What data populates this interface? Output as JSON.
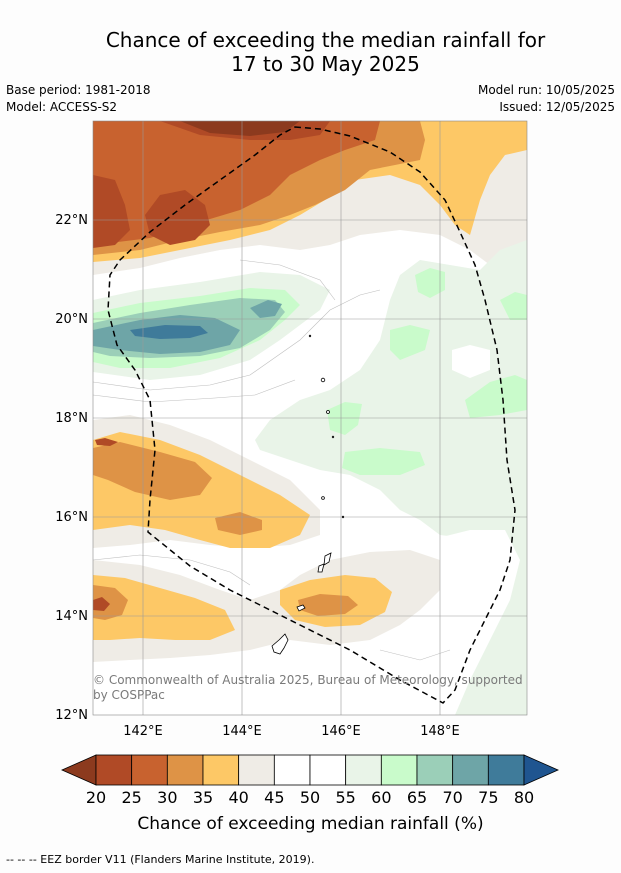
{
  "title": {
    "line1": "Chance of exceeding the median rainfall for",
    "line2": "17 to 30 May 2025"
  },
  "meta": {
    "base_period": "Base period: 1981-2018",
    "model": "Model: ACCESS-S2",
    "model_run": "Model run: 10/05/2025",
    "issued": "Issued: 12/05/2025"
  },
  "map": {
    "lat_labels": [
      "22°N",
      "20°N",
      "18°N",
      "16°N",
      "14°N",
      "12°N"
    ],
    "lon_labels": [
      "142°E",
      "144°E",
      "146°E",
      "148°E"
    ],
    "copyright_line1": "© Commonwealth of Australia 2025, Bureau of Meteorology, supported",
    "copyright_line2": "by COSPPac"
  },
  "colorbar": {
    "ticks": [
      "20",
      "25",
      "30",
      "35",
      "40",
      "45",
      "50",
      "55",
      "60",
      "65",
      "70",
      "75",
      "80"
    ],
    "colors": [
      "#8c3a1e",
      "#b04a26",
      "#c8622f",
      "#de9346",
      "#fdc866",
      "#efece6",
      "#ffffff",
      "#ffffff",
      "#e9f4e8",
      "#c9fbcb",
      "#9bcfb8",
      "#6ea5a7",
      "#3f7b9a",
      "#1f5590"
    ],
    "label": "Chance of exceeding median rainfall (%)"
  },
  "footer": {
    "legend": "--  --  -- EEZ border V11 (Flanders Marine Institute, 2019)."
  }
}
